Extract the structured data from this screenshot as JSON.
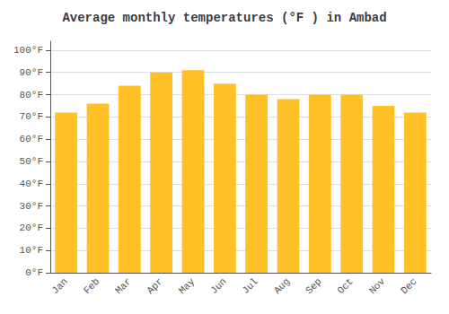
{
  "chart_data": {
    "type": "bar",
    "title": "Average monthly temperatures (°F ) in Ambad",
    "categories": [
      "Jan",
      "Feb",
      "Mar",
      "Apr",
      "May",
      "Jun",
      "Jul",
      "Aug",
      "Sep",
      "Oct",
      "Nov",
      "Dec"
    ],
    "values": [
      72,
      76,
      84,
      90,
      91,
      85,
      80,
      78,
      80,
      80,
      75,
      72
    ],
    "color": "#FFC125",
    "ylim": [
      0,
      104
    ],
    "yticks": [
      {
        "value": 0,
        "label": "0°F"
      },
      {
        "value": 10,
        "label": "10°F"
      },
      {
        "value": 20,
        "label": "20°F"
      },
      {
        "value": 30,
        "label": "30°F"
      },
      {
        "value": 40,
        "label": "40°F"
      },
      {
        "value": 50,
        "label": "50°F"
      },
      {
        "value": 60,
        "label": "60°F"
      },
      {
        "value": 70,
        "label": "70°F"
      },
      {
        "value": 80,
        "label": "80°F"
      },
      {
        "value": 90,
        "label": "90°F"
      },
      {
        "value": 100,
        "label": "100°F"
      }
    ],
    "grid": true
  }
}
